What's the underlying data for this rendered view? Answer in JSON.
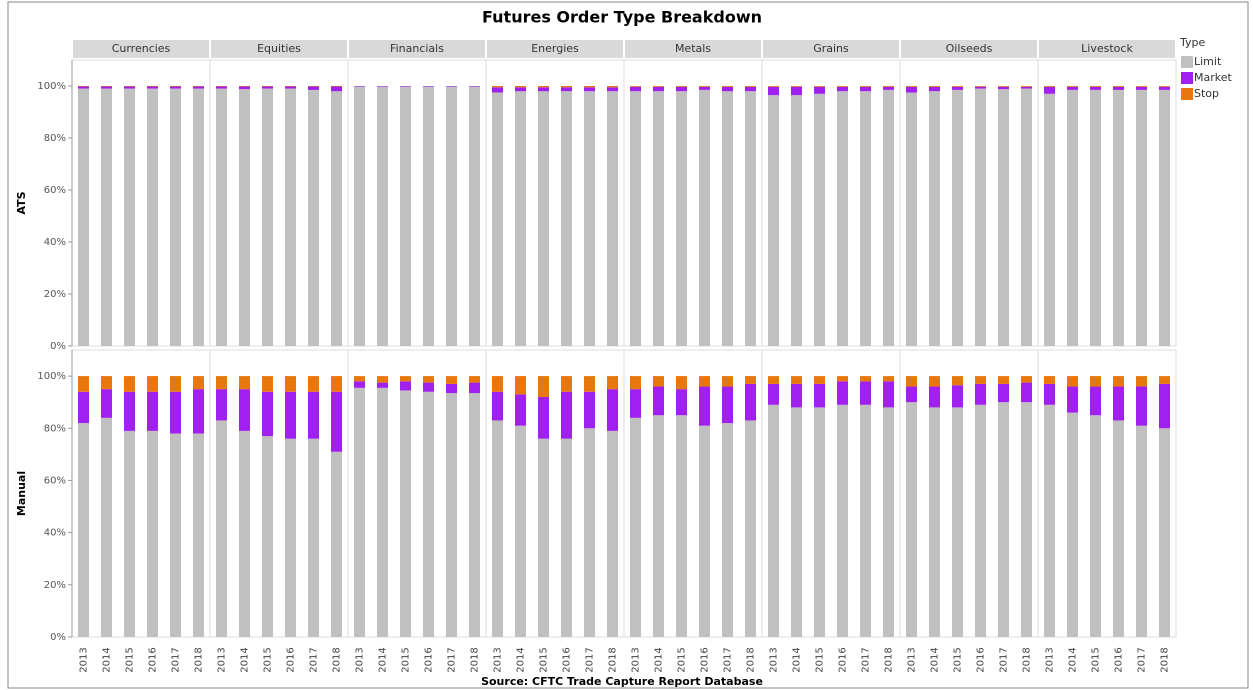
{
  "chart_data": {
    "type": "bar",
    "stacked": true,
    "title": "Futures Order Type Breakdown",
    "caption": "Source: CFTC Trade Capture Report Database",
    "facets": [
      "Currencies",
      "Equities",
      "Financials",
      "Energies",
      "Metals",
      "Grains",
      "Oilseeds",
      "Livestock"
    ],
    "rows": [
      "ATS",
      "Manual"
    ],
    "categories": [
      "2013",
      "2014",
      "2015",
      "2016",
      "2017",
      "2018"
    ],
    "legend_title": "Type",
    "ylim": [
      0,
      110
    ],
    "yticks": [
      {
        "value": 0,
        "label": "0%"
      },
      {
        "value": 20,
        "label": "20%"
      },
      {
        "value": 40,
        "label": "40%"
      },
      {
        "value": 60,
        "label": "60%"
      },
      {
        "value": 80,
        "label": "80%"
      },
      {
        "value": 100,
        "label": "100%"
      }
    ],
    "series": [
      {
        "name": "Limit",
        "color": "#c0c0c0",
        "values": [
          [
            [
              99,
              99,
              99,
              99,
              99,
              99
            ],
            [
              99,
              98.8,
              99,
              99,
              98.5,
              98
            ],
            [
              99.8,
              99.8,
              99.8,
              99.8,
              99.8,
              99.8
            ],
            [
              97.5,
              98,
              98,
              98,
              98,
              98
            ],
            [
              98,
              98,
              98,
              98.5,
              98,
              98
            ],
            [
              96.5,
              96.5,
              97,
              98,
              98,
              98.5
            ],
            [
              97.5,
              98,
              98.5,
              99,
              98.8,
              99
            ],
            [
              97,
              98.5,
              98.5,
              98.5,
              98.5,
              98.5
            ]
          ],
          [
            [
              82,
              84,
              79,
              79,
              78,
              78
            ],
            [
              83,
              79,
              77,
              76,
              76,
              71
            ],
            [
              95.5,
              95.5,
              94.5,
              94,
              93.5,
              93.5
            ],
            [
              83,
              81,
              76,
              76,
              80,
              79
            ],
            [
              84,
              85,
              85,
              81,
              82,
              83
            ],
            [
              89,
              88,
              88,
              89,
              89,
              88
            ],
            [
              90,
              88,
              88,
              89,
              90,
              90
            ],
            [
              89,
              86,
              85,
              83,
              81,
              80
            ]
          ]
        ]
      },
      {
        "name": "Market",
        "color": "#a020f0",
        "values": [
          [
            [
              0.8,
              0.8,
              0.8,
              0.8,
              0.8,
              0.8
            ],
            [
              0.8,
              1,
              0.8,
              0.8,
              1.3,
              1.8
            ],
            [
              0.2,
              0.2,
              0.2,
              0.2,
              0.2,
              0.2
            ],
            [
              2,
              1.5,
              1.5,
              1.5,
              1.5,
              1.5
            ],
            [
              1.7,
              1.7,
              1.7,
              1.2,
              1.7,
              1.7
            ],
            [
              3.2,
              3.2,
              2.7,
              1.7,
              1.7,
              1.2
            ],
            [
              2.2,
              1.7,
              1.2,
              0.7,
              0.9,
              0.7
            ],
            [
              2.7,
              1.2,
              1.2,
              1.2,
              1.2,
              1.2
            ]
          ],
          [
            [
              12,
              11,
              15,
              15,
              16,
              17
            ],
            [
              12,
              16,
              17,
              18,
              18,
              23
            ],
            [
              2.5,
              2,
              3.5,
              3.5,
              3.5,
              4
            ],
            [
              11,
              12,
              16,
              18,
              14,
              16
            ],
            [
              11,
              11,
              10,
              15,
              14,
              14
            ],
            [
              8,
              9,
              9,
              9,
              9,
              10
            ],
            [
              6,
              8,
              8.5,
              8,
              7,
              7.5
            ],
            [
              8,
              10,
              11,
              13,
              15,
              17
            ]
          ]
        ]
      },
      {
        "name": "Stop",
        "color": "#e8770e",
        "values": [
          [
            [
              0.2,
              0.2,
              0.2,
              0.2,
              0.2,
              0.2
            ],
            [
              0.2,
              0.2,
              0.2,
              0.2,
              0.2,
              0.2
            ],
            [
              0,
              0,
              0,
              0,
              0,
              0
            ],
            [
              0.5,
              0.5,
              0.5,
              0.5,
              0.5,
              0.5
            ],
            [
              0.3,
              0.3,
              0.3,
              0.3,
              0.3,
              0.3
            ],
            [
              0.3,
              0.3,
              0.3,
              0.3,
              0.3,
              0.3
            ],
            [
              0.3,
              0.3,
              0.3,
              0.3,
              0.3,
              0.3
            ],
            [
              0.3,
              0.3,
              0.3,
              0.3,
              0.3,
              0.3
            ]
          ],
          [
            [
              6,
              5,
              6,
              6,
              6,
              5
            ],
            [
              5,
              5,
              6,
              6,
              6,
              6
            ],
            [
              2,
              2.5,
              2,
              2.5,
              3,
              2.5
            ],
            [
              6,
              7,
              8,
              6,
              6,
              5
            ],
            [
              5,
              4,
              5,
              4,
              4,
              3
            ],
            [
              3,
              3,
              3,
              2,
              2,
              2
            ],
            [
              4,
              4,
              3.5,
              3,
              3,
              2.5
            ],
            [
              3,
              4,
              4,
              4,
              4,
              3
            ]
          ]
        ]
      }
    ]
  }
}
